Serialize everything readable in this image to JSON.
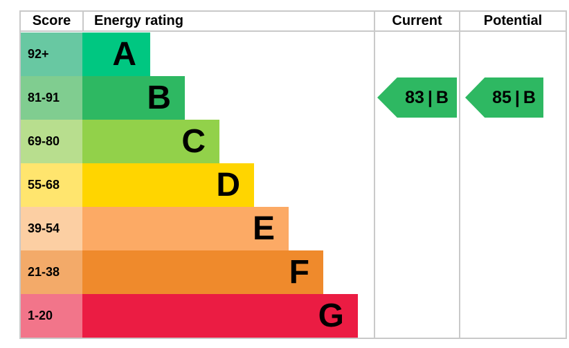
{
  "header": {
    "score_label": "Score",
    "energy_rating_label": "Energy rating",
    "current_label": "Current",
    "potential_label": "Potential"
  },
  "bands": [
    {
      "score_range": "92+",
      "letter": "A",
      "bar_color": "#00c781",
      "score_bg": "#68c8a2"
    },
    {
      "score_range": "81-91",
      "letter": "B",
      "bar_color": "#2eb862",
      "score_bg": "#80cd90"
    },
    {
      "score_range": "69-80",
      "letter": "C",
      "bar_color": "#92d14a",
      "score_bg": "#b8de8e"
    },
    {
      "score_range": "55-68",
      "letter": "D",
      "bar_color": "#ffd500",
      "score_bg": "#ffe56e"
    },
    {
      "score_range": "39-54",
      "letter": "E",
      "bar_color": "#fcaa65",
      "score_bg": "#fccfa3"
    },
    {
      "score_range": "21-38",
      "letter": "F",
      "bar_color": "#ef8a2c",
      "score_bg": "#f3aa69"
    },
    {
      "score_range": "1-20",
      "letter": "G",
      "bar_color": "#eb1c43",
      "score_bg": "#f2758a"
    }
  ],
  "ratings": {
    "separator": "|",
    "current": {
      "score": "83",
      "band": "B",
      "arrow_color": "#2eb862"
    },
    "potential": {
      "score": "85",
      "band": "B",
      "arrow_color": "#2eb862"
    }
  },
  "colors": {
    "border": "#c9c9c9",
    "background": "#ffffff",
    "text": "#000000"
  },
  "chart_data": {
    "type": "bar",
    "title": "Energy rating",
    "columns": [
      "Score",
      "Energy rating",
      "Current",
      "Potential"
    ],
    "categories": [
      "A",
      "B",
      "C",
      "D",
      "E",
      "F",
      "G"
    ],
    "score_ranges": [
      "92+",
      "81-91",
      "69-80",
      "55-68",
      "39-54",
      "21-38",
      "1-20"
    ],
    "band_colors": [
      "#00c781",
      "#2eb862",
      "#92d14a",
      "#ffd500",
      "#fcaa65",
      "#ef8a2c",
      "#eb1c43"
    ],
    "current_rating": {
      "score": 83,
      "band": "B"
    },
    "potential_rating": {
      "score": 85,
      "band": "B"
    },
    "legend": "off",
    "grid": "off"
  }
}
